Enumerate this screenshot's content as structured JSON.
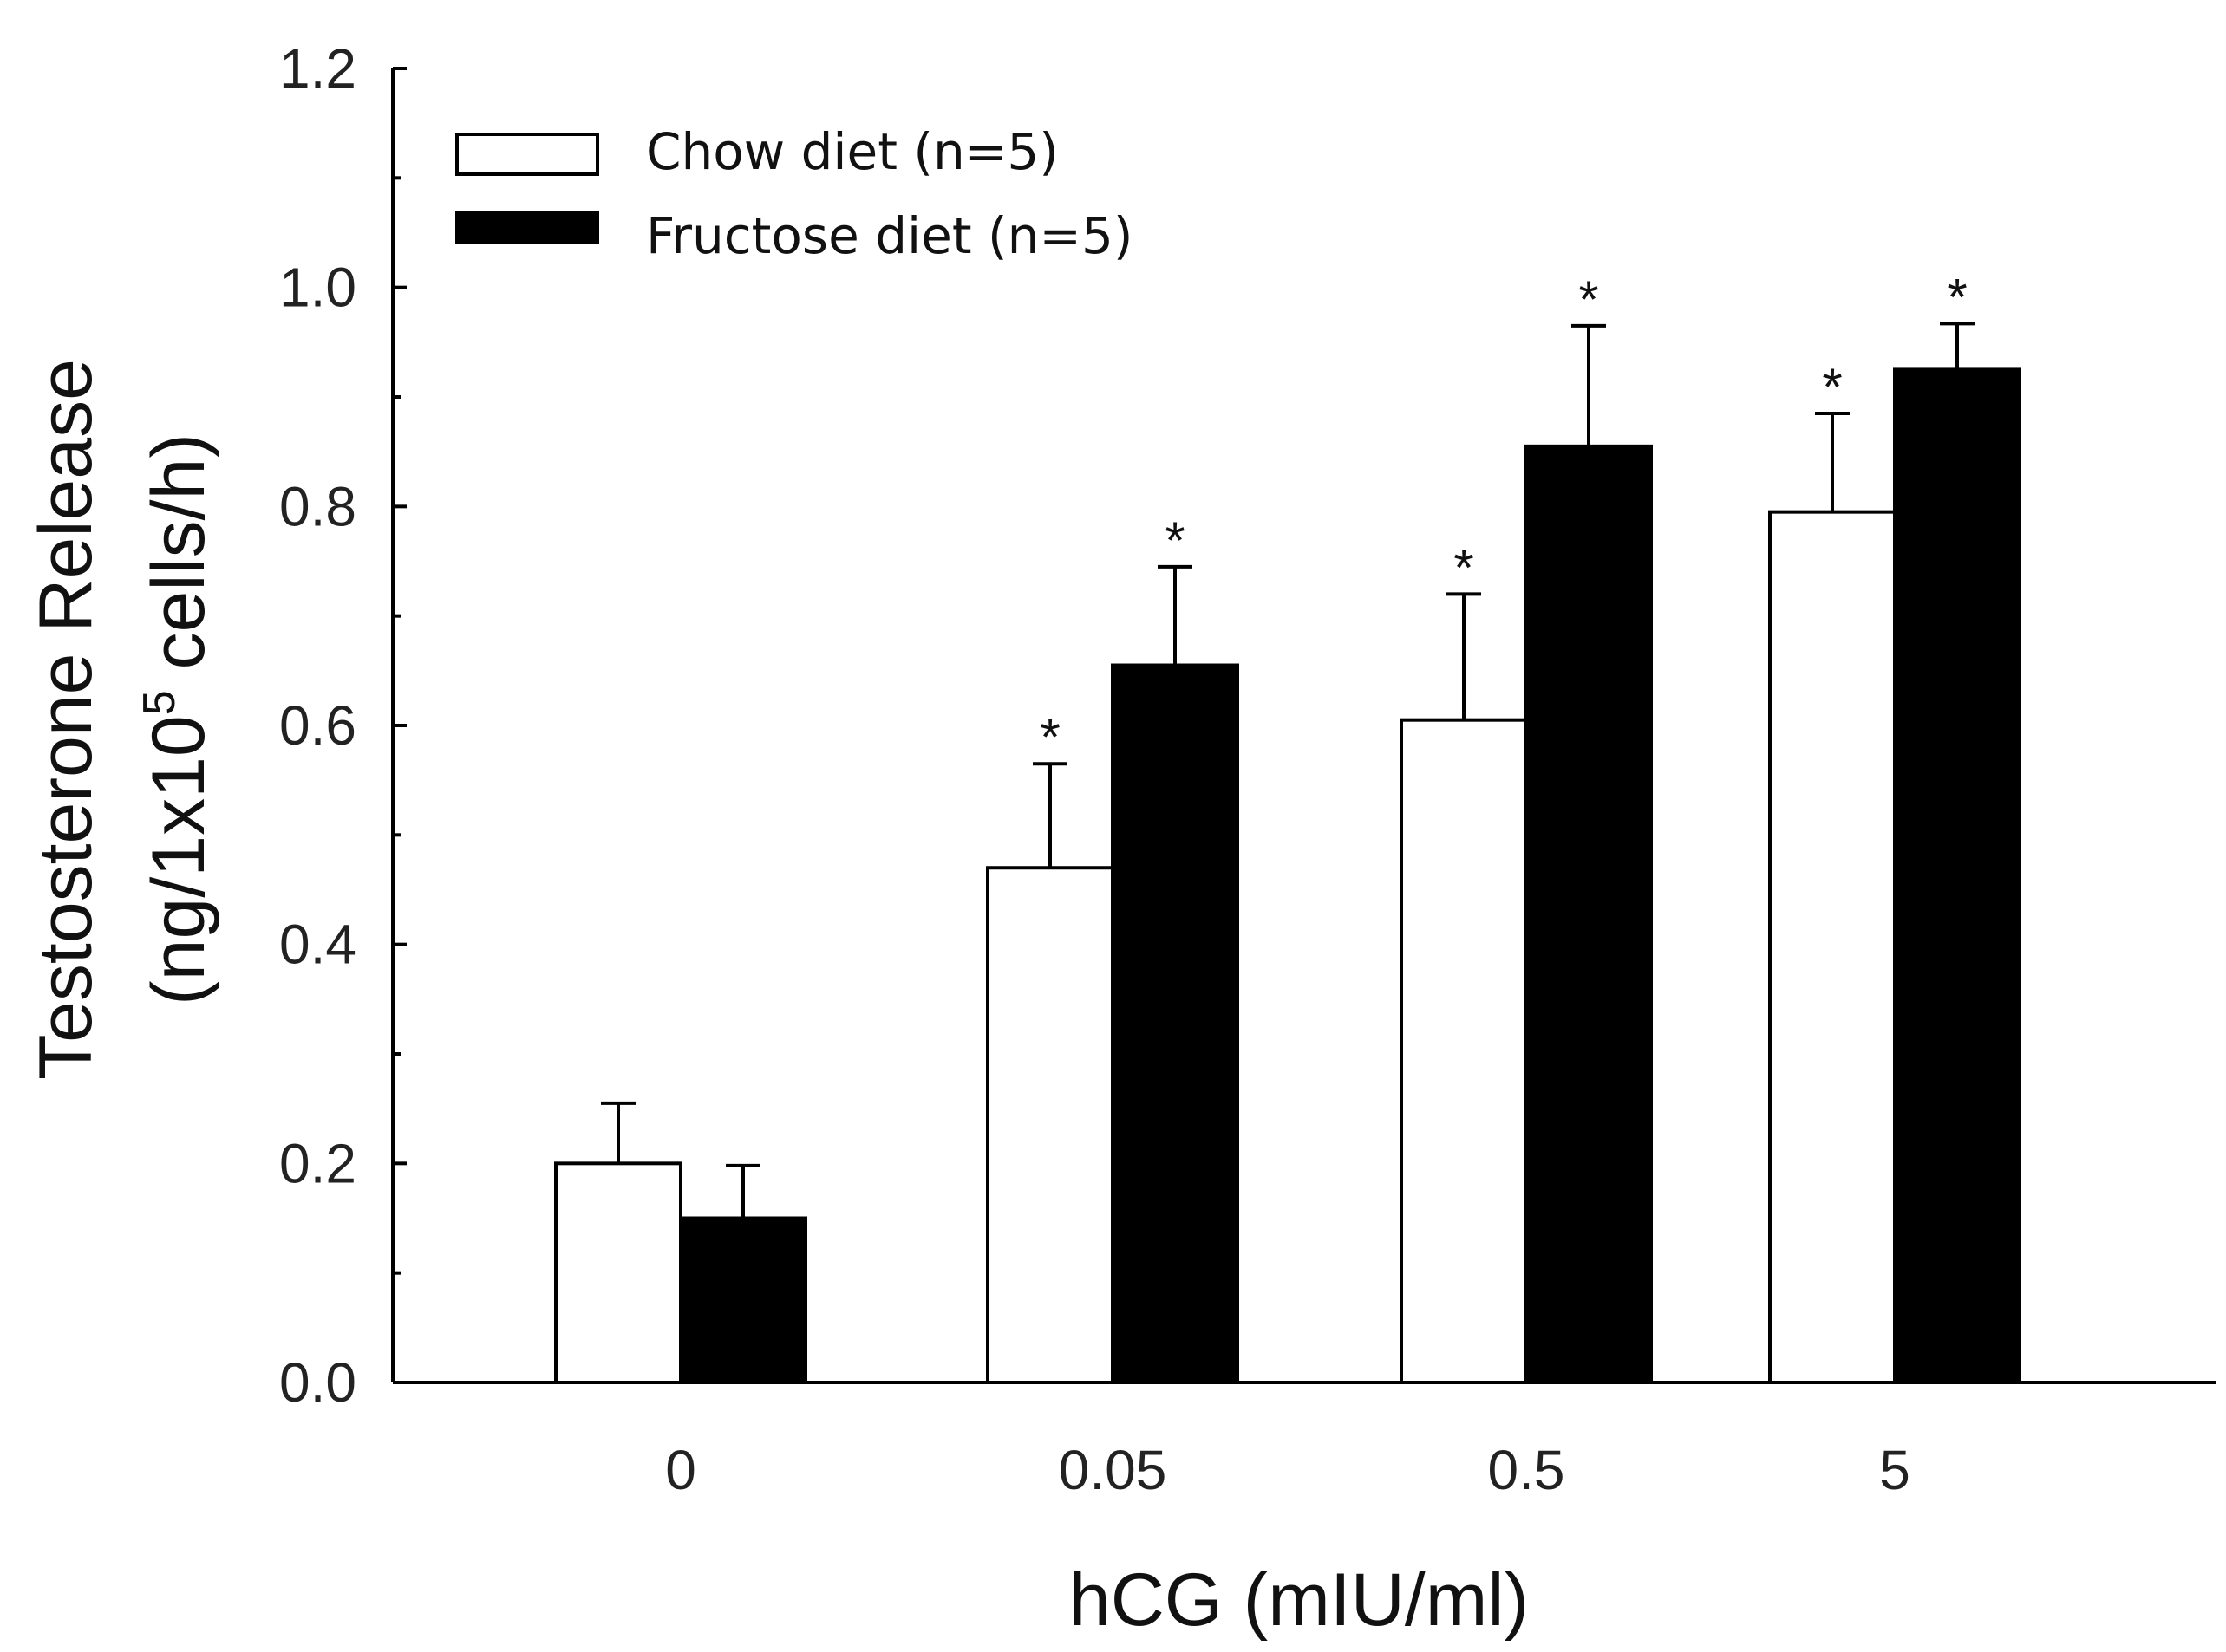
{
  "chart_data": {
    "type": "bar",
    "title": "",
    "xlabel": "hCG (mIU/ml)",
    "ylabel_line1": "Testosterone Release",
    "ylabel_line2_prefix": "(ng/1x10",
    "ylabel_line2_superscript": "5",
    "ylabel_line2_suffix": " cells/h)",
    "ylim": [
      0,
      1.2
    ],
    "yticks": [
      "0.0",
      "0.2",
      "0.4",
      "0.6",
      "0.8",
      "1.0",
      "1.2"
    ],
    "categories": [
      "0",
      "0.05",
      "0.5",
      "5"
    ],
    "significance_marker": "*",
    "legend_position": "top-left",
    "series": [
      {
        "name": "Chow diet (n=5)",
        "fill": "#ffffff",
        "values": [
          0.2,
          0.47,
          0.605,
          0.795
        ],
        "errors": [
          0.055,
          0.095,
          0.115,
          0.09
        ],
        "significant": [
          false,
          true,
          true,
          true
        ]
      },
      {
        "name": "Fructose diet (n=5)",
        "fill": "#000000",
        "values": [
          0.15,
          0.655,
          0.855,
          0.925
        ],
        "errors": [
          0.048,
          0.09,
          0.11,
          0.042
        ],
        "significant": [
          false,
          true,
          true,
          true
        ]
      }
    ]
  }
}
